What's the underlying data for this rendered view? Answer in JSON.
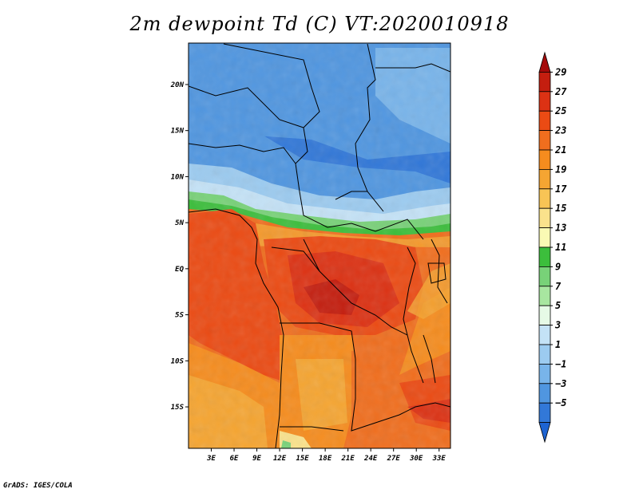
{
  "title": "2m dewpoint Td (C) VT:2020010918",
  "credit": "GrADS: IGES/COLA",
  "map": {
    "lat_ticks": [
      "20N",
      "15N",
      "10N",
      "5N",
      "EQ",
      "5S",
      "10S",
      "15S"
    ],
    "lat_values": [
      20,
      15,
      10,
      5,
      0,
      -5,
      -10,
      -15
    ],
    "lon_ticks": [
      "3E",
      "6E",
      "9E",
      "12E",
      "15E",
      "18E",
      "21E",
      "24E",
      "27E",
      "30E",
      "33E"
    ],
    "lon_values": [
      3,
      6,
      9,
      12,
      15,
      18,
      21,
      24,
      27,
      30,
      33
    ],
    "extent": {
      "lon_min": 0,
      "lon_max": 34.5,
      "lat_min": -19.5,
      "lat_max": 24.5
    }
  },
  "colorbar": {
    "labels": [
      "29",
      "27",
      "25",
      "23",
      "21",
      "19",
      "17",
      "15",
      "13",
      "11",
      "9",
      "7",
      "5",
      "3",
      "1",
      "−1",
      "−3",
      "−5"
    ],
    "colors": [
      "#a50a0a",
      "#c41e0f",
      "#dc3214",
      "#eb4b14",
      "#f06e1e",
      "#f58c1e",
      "#f5a532",
      "#f8c455",
      "#fae28c",
      "#fafab4",
      "#3cbe3c",
      "#78d278",
      "#a8e6a0",
      "#e6fae6",
      "#c4e2f6",
      "#9ccbf0",
      "#78b4ea",
      "#5096e0",
      "#3278d8",
      "#1e64d2"
    ]
  }
}
